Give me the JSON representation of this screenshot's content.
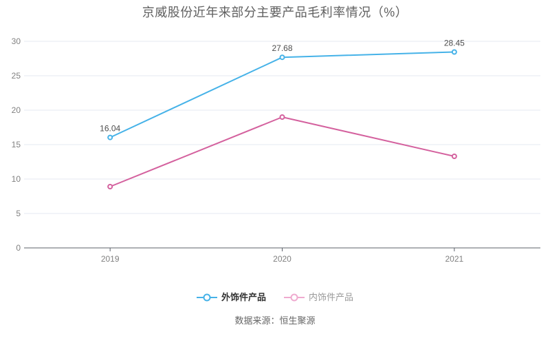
{
  "title": "京威股份近年来部分主要产品毛利率情况（%）",
  "footer": {
    "source_label": "数据来源：恒生聚源"
  },
  "legend": {
    "items": [
      {
        "label": "外饰件产品",
        "icon_color": "#45b2e8",
        "text_color": "#333333",
        "bold": true
      },
      {
        "label": "内饰件产品",
        "icon_color": "#efaacf",
        "text_color": "#9a9a9a",
        "bold": false
      }
    ]
  },
  "colors": {
    "blue_series": "#45b2e8",
    "pink_series": "#d4619e",
    "grid_line": "#e4eaf2",
    "axis_line": "#5b6069",
    "tick_label": "#808080",
    "data_label": "#4d4d4d",
    "marker_fill": "#ffffff",
    "background": "#ffffff"
  },
  "chart_data": {
    "type": "line",
    "title": "京威股份近年来部分主要产品毛利率情况（%）",
    "categories": [
      "2019",
      "2020",
      "2021"
    ],
    "series": [
      {
        "name": "外饰件产品",
        "color": "#45b2e8",
        "values": [
          16.04,
          27.68,
          28.45
        ],
        "labels": [
          "16.04",
          "27.68",
          "28.45"
        ],
        "show_labels": true
      },
      {
        "name": "内饰件产品",
        "color": "#d4619e",
        "values": [
          8.9,
          19.0,
          13.3
        ],
        "labels": [],
        "show_labels": false
      }
    ],
    "xlabel": "",
    "ylabel": "",
    "ylim": [
      0,
      30
    ],
    "y_ticks": [
      0,
      5,
      10,
      15,
      20,
      25,
      30
    ],
    "grid": true,
    "legend_position": "bottom",
    "source": "数据来源：恒生聚源"
  }
}
